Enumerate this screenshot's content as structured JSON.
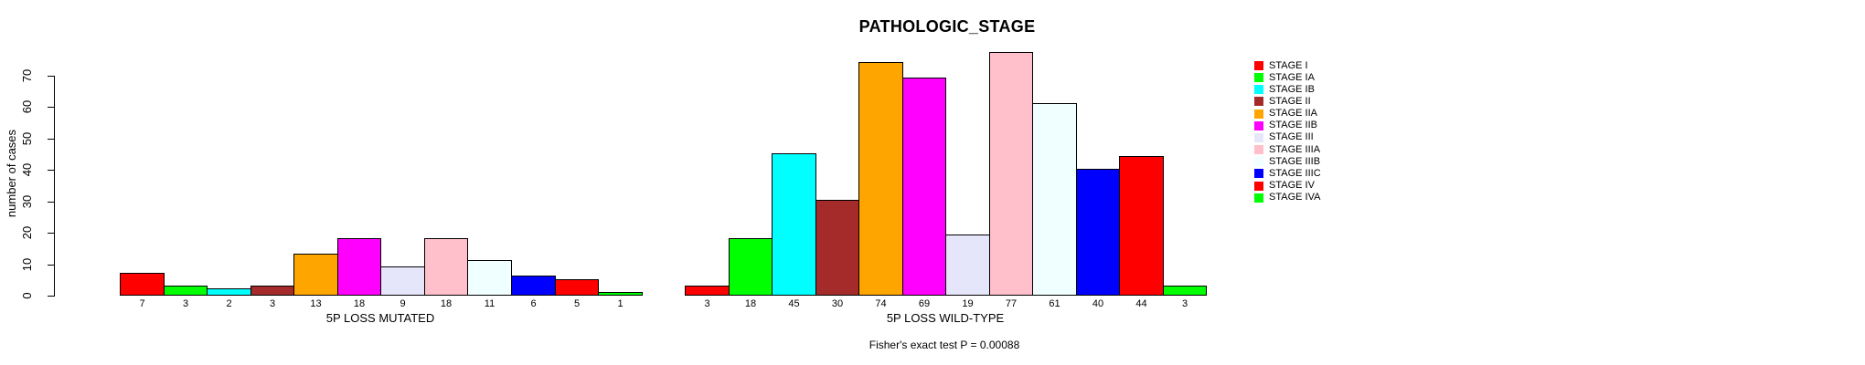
{
  "chart_data": {
    "type": "bar",
    "title": "PATHOLOGIC_STAGE",
    "ylabel": "number of cases",
    "ylim": [
      0,
      70
    ],
    "yticks": [
      0,
      10,
      20,
      30,
      40,
      50,
      60,
      70
    ],
    "grid": false,
    "legend_position": "right",
    "bar_border_color": "#000000",
    "categories": [
      "STAGE I",
      "STAGE IA",
      "STAGE IB",
      "STAGE II",
      "STAGE IIA",
      "STAGE IIB",
      "STAGE III",
      "STAGE IIIA",
      "STAGE IIIB",
      "STAGE IIIC",
      "STAGE IV",
      "STAGE IVA"
    ],
    "colors": [
      "#FF0000",
      "#00FF00",
      "#00FFFF",
      "#A52A2A",
      "#FFA500",
      "#FF00FF",
      "#E6E6FA",
      "#FFC0CB",
      "#F0FFFF",
      "#0000FF",
      "#FF0000",
      "#00FF00"
    ],
    "series": [
      {
        "name": "5P LOSS MUTATED",
        "values": [
          7,
          3,
          2,
          3,
          13,
          18,
          9,
          18,
          11,
          6,
          5,
          1
        ]
      },
      {
        "name": "5P LOSS WILD-TYPE",
        "values": [
          3,
          18,
          45,
          30,
          74,
          69,
          19,
          77,
          61,
          40,
          44,
          3
        ]
      }
    ],
    "bar_value_labels_shown": true,
    "annotation": "Fisher's exact test P = 0.00088"
  }
}
